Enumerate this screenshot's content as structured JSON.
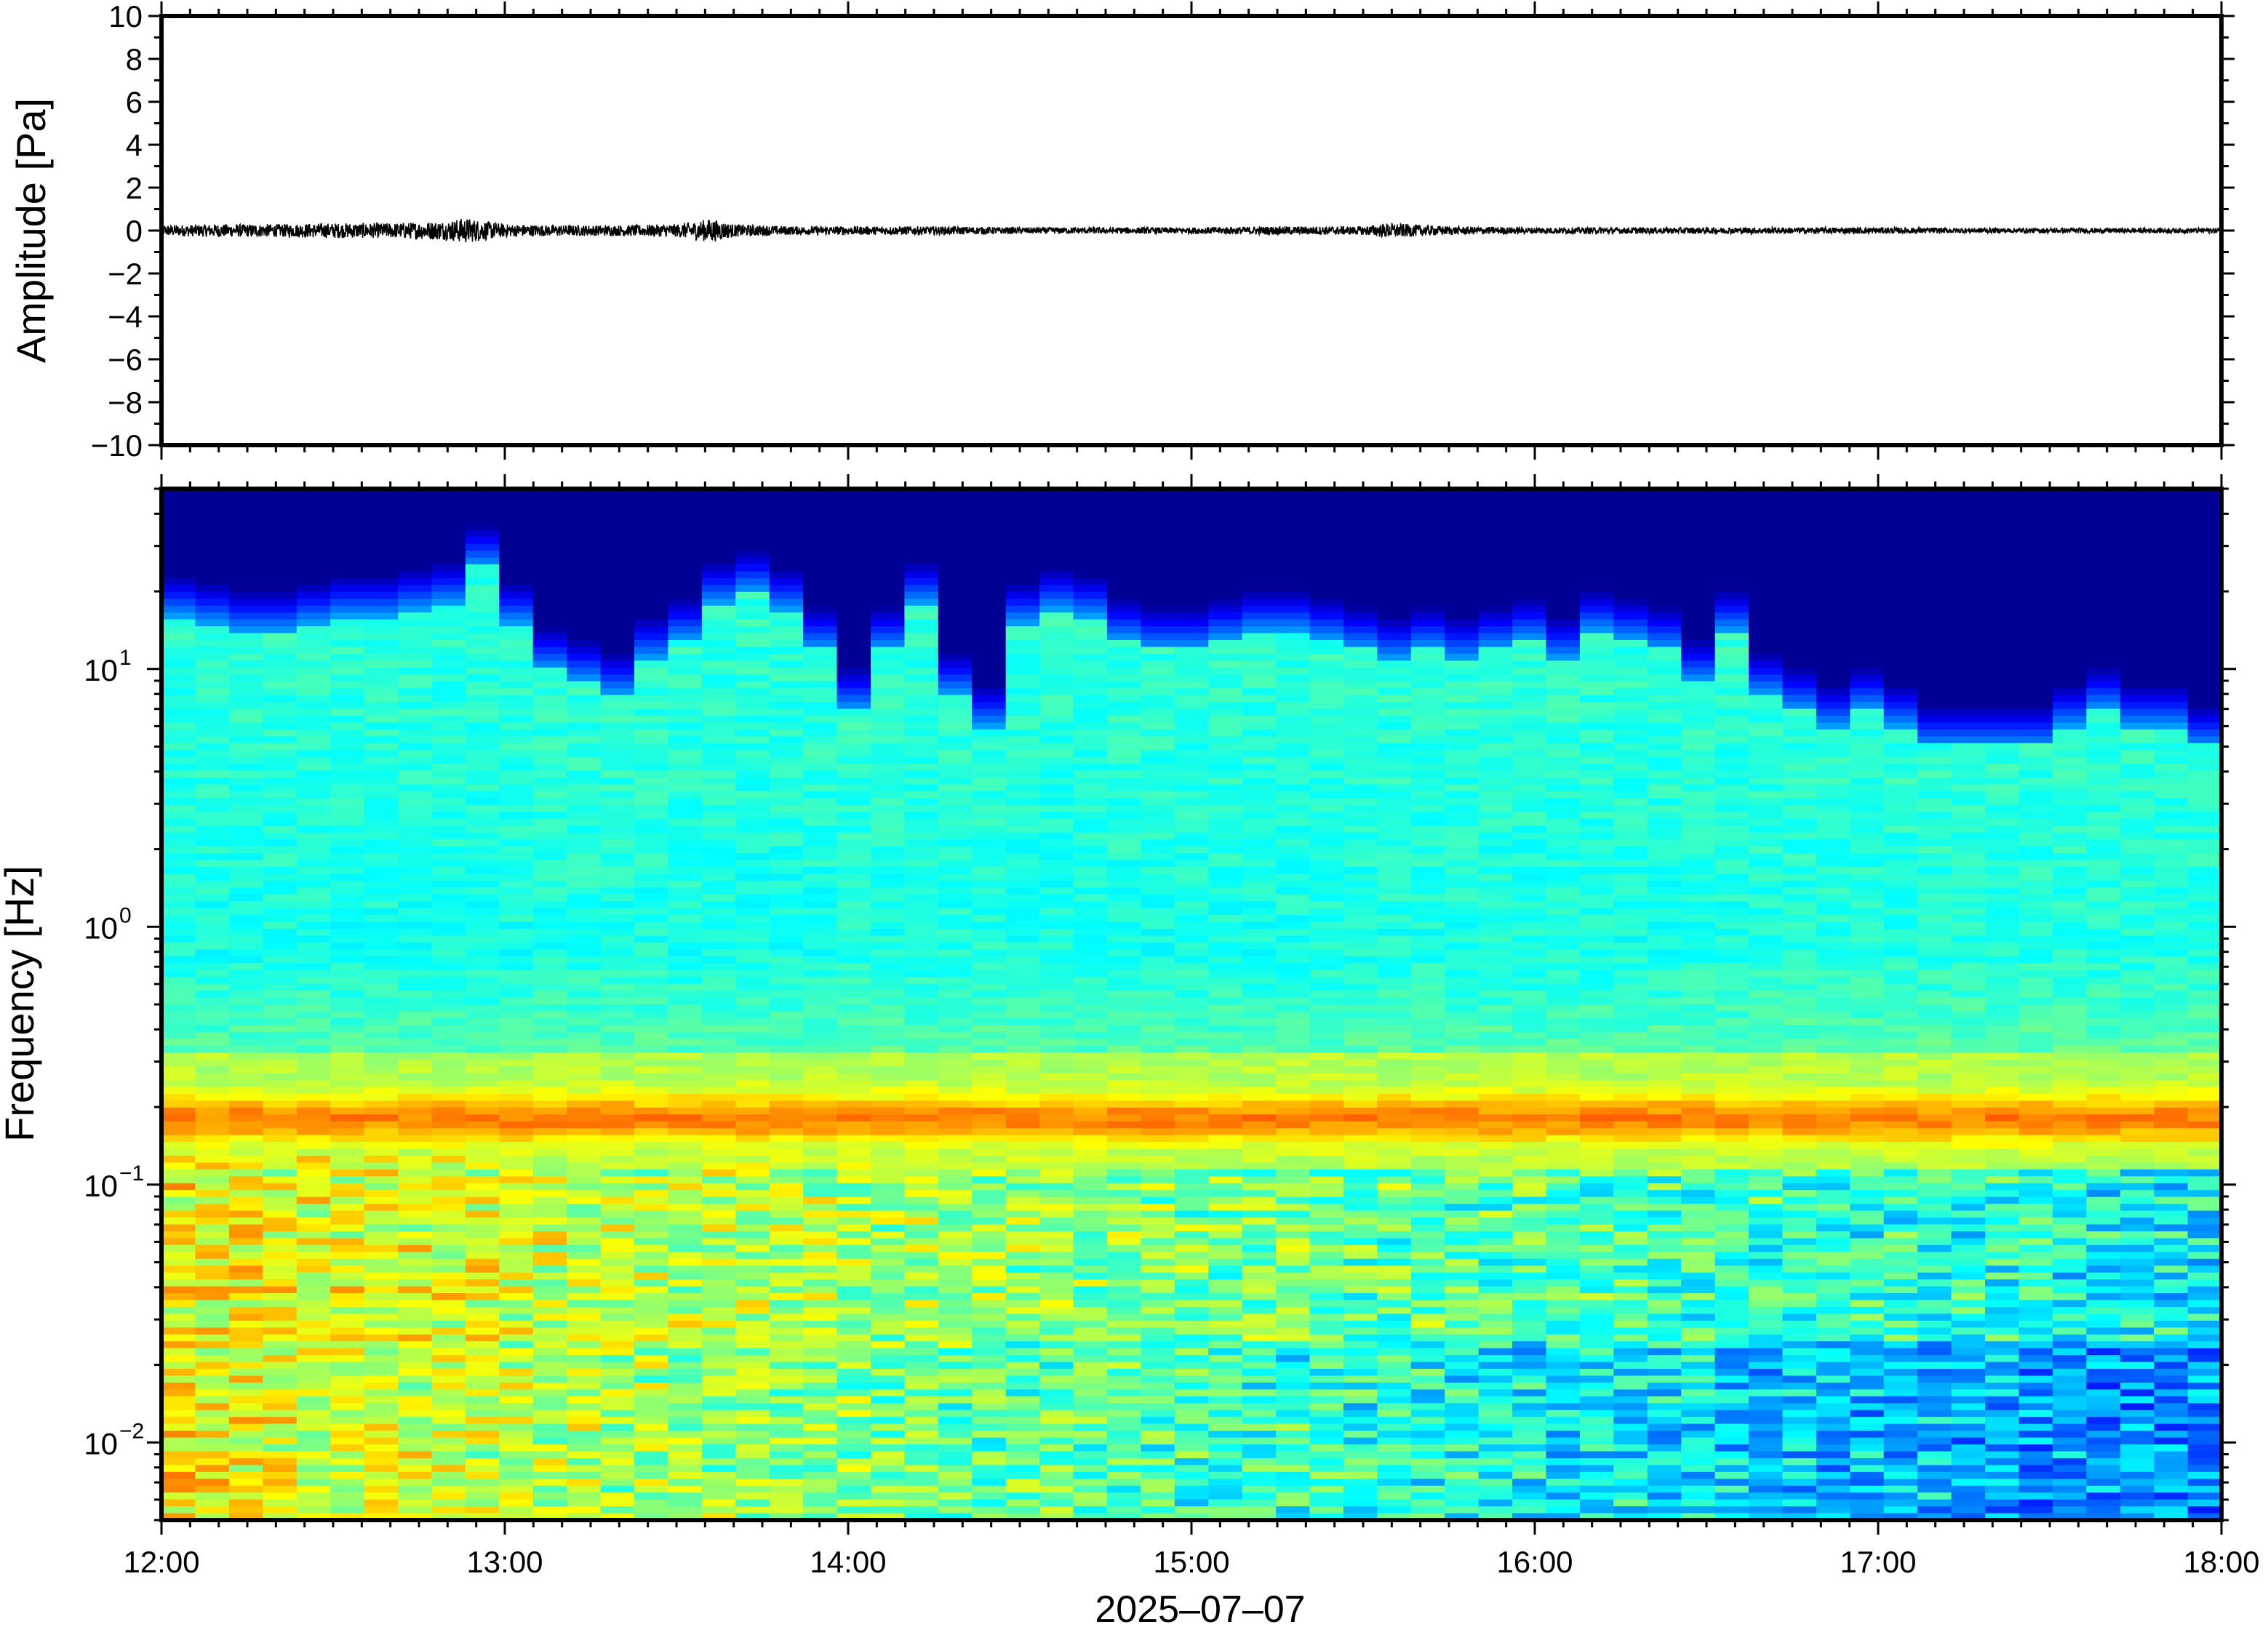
{
  "chart_data": [
    {
      "type": "line",
      "panel": "waveform",
      "ylabel": "Amplitude [Pa]",
      "ylim": [
        -10,
        10
      ],
      "yticks": [
        -10,
        -8,
        -6,
        -4,
        -2,
        0,
        2,
        4,
        6,
        8,
        10
      ],
      "ytick_labels": [
        "−10",
        "−8",
        "−6",
        "−4",
        "−2",
        "0",
        "2",
        "4",
        "6",
        "8",
        "10"
      ],
      "xlim": [
        "2025-07-07 12:00",
        "2025-07-07 18:00"
      ],
      "series": [
        {
          "color": "#000000",
          "x": [
            "12:00",
            "12:10",
            "12:20",
            "12:30",
            "12:40",
            "12:50",
            "12:53",
            "13:00",
            "13:10",
            "13:20",
            "13:30",
            "13:36",
            "13:40",
            "13:50",
            "14:00",
            "14:15",
            "14:30",
            "14:45",
            "15:00",
            "15:15",
            "15:30",
            "15:34",
            "15:45",
            "16:00",
            "16:15",
            "16:30",
            "16:45",
            "17:00",
            "17:15",
            "17:30",
            "17:45",
            "18:00"
          ],
          "envelope": [
            0.25,
            0.3,
            0.3,
            0.35,
            0.35,
            0.45,
            0.6,
            0.3,
            0.25,
            0.25,
            0.3,
            0.55,
            0.3,
            0.2,
            0.2,
            0.2,
            0.15,
            0.15,
            0.15,
            0.2,
            0.2,
            0.35,
            0.2,
            0.15,
            0.15,
            0.15,
            0.15,
            0.15,
            0.12,
            0.12,
            0.12,
            0.12
          ]
        }
      ]
    },
    {
      "type": "heatmap",
      "panel": "spectrogram",
      "ylabel": "Frequency [Hz]",
      "xlabel": "2025–07–07",
      "yscale": "log",
      "ylim": [
        0.005,
        50
      ],
      "yticks": [
        0.01,
        0.1,
        1,
        10
      ],
      "ytick_labels": [
        {
          "base": "10",
          "exp": "−2"
        },
        {
          "base": "10",
          "exp": "−1"
        },
        {
          "base": "10",
          "exp": "0"
        },
        {
          "base": "10",
          "exp": "1"
        }
      ],
      "xticks": [
        "12:00",
        "13:00",
        "14:00",
        "15:00",
        "16:00",
        "17:00",
        "18:00"
      ],
      "colormap": "jet",
      "cutoff_hz_per_column": [
        16,
        15,
        14,
        14,
        15,
        16,
        16,
        17,
        18,
        25,
        15,
        10,
        9,
        8,
        11,
        13,
        18,
        20,
        17,
        12,
        7,
        12,
        18,
        8,
        6,
        15,
        17,
        16,
        13,
        12,
        12,
        13,
        14,
        14,
        13,
        12,
        11,
        12,
        11,
        12,
        13,
        11,
        14,
        13,
        12,
        9,
        14,
        8,
        7,
        6,
        7,
        6,
        5,
        5,
        5,
        5,
        6,
        7,
        6,
        6,
        5
      ],
      "microbarom_band_hz": [
        0.14,
        0.25
      ],
      "microbarom_peak_hz": 0.18
    }
  ]
}
